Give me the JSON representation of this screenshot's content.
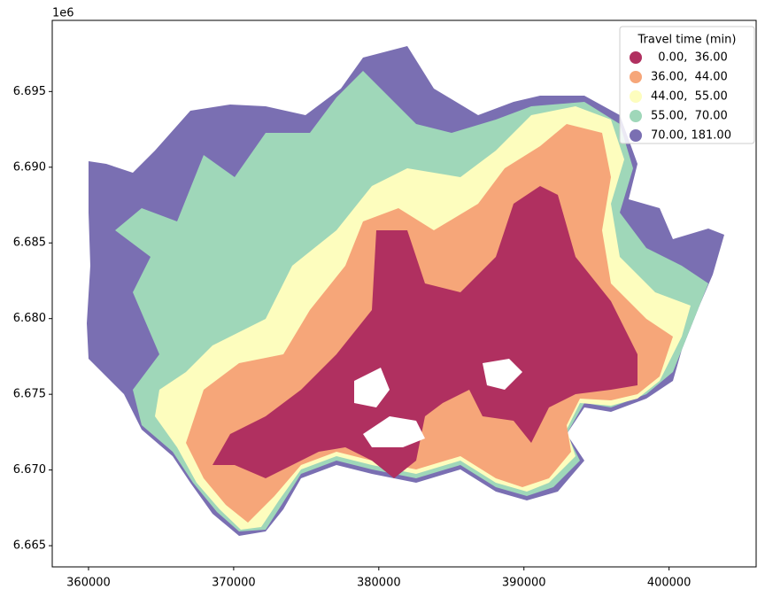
{
  "chart_data": {
    "type": "choropleth",
    "axis_offset_label": "1e6",
    "xlim": [
      357500,
      406000
    ],
    "ylim": [
      6.6636,
      6.6997
    ],
    "xticks": [
      360000,
      370000,
      380000,
      390000,
      400000
    ],
    "yticks": [
      6.665,
      {
        "value": 6.67,
        "label": "6.670"
      },
      6.675,
      {
        "value": 6.68,
        "label": "6.680"
      },
      6.685,
      {
        "value": 6.69,
        "label": "6.690"
      },
      6.695
    ],
    "legend_title": "Travel time (min)",
    "legend_position": "upper right",
    "series": [
      {
        "name": "  0.00,  36.00",
        "color": "#b03060"
      },
      {
        "name": "36.00,  44.00",
        "color": "#f6a679"
      },
      {
        "name": "44.00,  55.00",
        "color": "#fdfdbe"
      },
      {
        "name": "55.00,  70.00",
        "color": "#9fd7b9"
      },
      {
        "name": "70.00, 181.00",
        "color": "#7a6fb2"
      }
    ]
  }
}
